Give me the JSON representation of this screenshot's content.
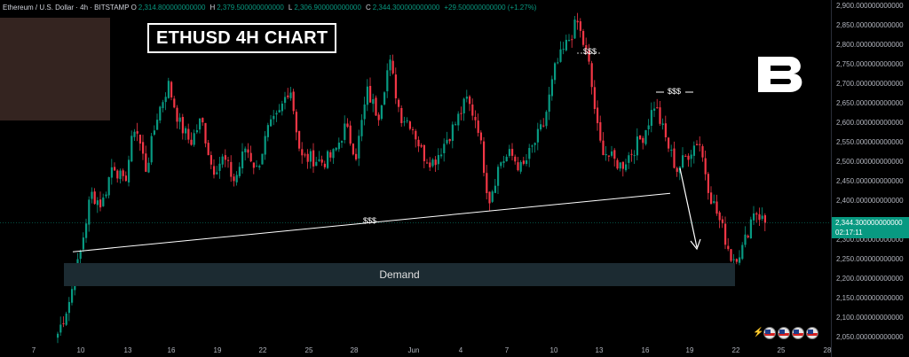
{
  "header": {
    "symbol": "Ethereum / U.S. Dollar · 4h · BITSTAMP",
    "o_label": "O",
    "o_value": "2,314.800000000000",
    "h_label": "H",
    "h_value": "2,379.500000000000",
    "l_label": "L",
    "l_value": "2,306.900000000000",
    "c_label": "C",
    "c_value": "2,344.300000000000",
    "change": "+29.500000000000 (+1.27%)"
  },
  "title_box": "ETHUSD 4H CHART",
  "annotations": {
    "liquidity_line_label": "$$$",
    "top_label": "$$$",
    "right_label": "$$$"
  },
  "demand_label": "Demand",
  "price_tag": {
    "price": "2,344.300000000000",
    "countdown": "02:17:11"
  },
  "colors": {
    "up": "#089981",
    "down": "#f23645",
    "demand": "#1c2b32",
    "background": "#000000"
  },
  "icons": {
    "logo": "brand-b-logo",
    "calendar": "us-flag-icon"
  },
  "chart_data": {
    "type": "candlestick",
    "title": "ETHUSD 4H CHART",
    "xlabel": "",
    "ylabel": "",
    "ylim": [
      2050,
      2900
    ],
    "ytick_labels": [
      "2,900.000000000000",
      "2,850.000000000000",
      "2,800.000000000000",
      "2,750.000000000000",
      "2,700.000000000000",
      "2,650.000000000000",
      "2,600.000000000000",
      "2,550.000000000000",
      "2,500.000000000000",
      "2,450.000000000000",
      "2,400.000000000000",
      "2,350.000000000000",
      "2,300.000000000000",
      "2,250.000000000000",
      "2,200.000000000000",
      "2,150.000000000000",
      "2,100.000000000000",
      "2,050.000000000000"
    ],
    "xtick_labels": [
      "7",
      "10",
      "13",
      "16",
      "19",
      "22",
      "25",
      "28",
      "Jun",
      "4",
      "7",
      "10",
      "13",
      "16",
      "19",
      "22",
      "25",
      "28"
    ],
    "waypoints": [
      [
        2060,
        2060
      ],
      [
        2140,
        2070
      ],
      [
        2260,
        2090
      ],
      [
        2420,
        2100
      ],
      [
        2390,
        2110
      ],
      [
        2500,
        2130
      ],
      [
        2440,
        2140
      ],
      [
        2600,
        2150
      ],
      [
        2480,
        2160
      ],
      [
        2620,
        2170
      ],
      [
        2700,
        2180
      ],
      [
        2600,
        2190
      ],
      [
        2550,
        2200
      ],
      [
        2610,
        2210
      ],
      [
        2480,
        2230
      ],
      [
        2510,
        2240
      ],
      [
        2450,
        2250
      ],
      [
        2540,
        2260
      ],
      [
        2480,
        2270
      ],
      [
        2580,
        2285
      ],
      [
        2620,
        2295
      ],
      [
        2700,
        2300
      ],
      [
        2510,
        2315
      ],
      [
        2510,
        2330
      ],
      [
        2500,
        2340
      ],
      [
        2520,
        2350
      ],
      [
        2590,
        2360
      ],
      [
        2520,
        2370
      ],
      [
        2680,
        2380
      ],
      [
        2620,
        2390
      ],
      [
        2760,
        2400
      ],
      [
        2620,
        2410
      ],
      [
        2600,
        2425
      ],
      [
        2520,
        2440
      ],
      [
        2500,
        2455
      ],
      [
        2550,
        2465
      ],
      [
        2600,
        2475
      ],
      [
        2660,
        2480
      ],
      [
        2600,
        2490
      ],
      [
        2400,
        2500
      ],
      [
        2500,
        2510
      ],
      [
        2520,
        2520
      ],
      [
        2480,
        2530
      ],
      [
        2540,
        2540
      ],
      [
        2600,
        2550
      ],
      [
        2740,
        2560
      ],
      [
        2800,
        2565
      ],
      [
        2860,
        2575
      ],
      [
        2760,
        2585
      ],
      [
        2550,
        2600
      ],
      [
        2510,
        2610
      ],
      [
        2490,
        2620
      ],
      [
        2530,
        2630
      ],
      [
        2570,
        2640
      ],
      [
        2650,
        2650
      ],
      [
        2560,
        2660
      ],
      [
        2480,
        2675
      ],
      [
        2520,
        2690
      ],
      [
        2560,
        2700
      ],
      [
        2420,
        2715
      ],
      [
        2340,
        2725
      ],
      [
        2250,
        2730
      ],
      [
        2280,
        2745
      ],
      [
        2380,
        2760
      ],
      [
        2344,
        2764
      ]
    ],
    "last_close": 2344.3,
    "demand_zone": [
      2185,
      2245
    ],
    "liquidity_line": [
      [
        2270,
        2085
      ],
      [
        2420,
        2440
      ]
    ]
  }
}
